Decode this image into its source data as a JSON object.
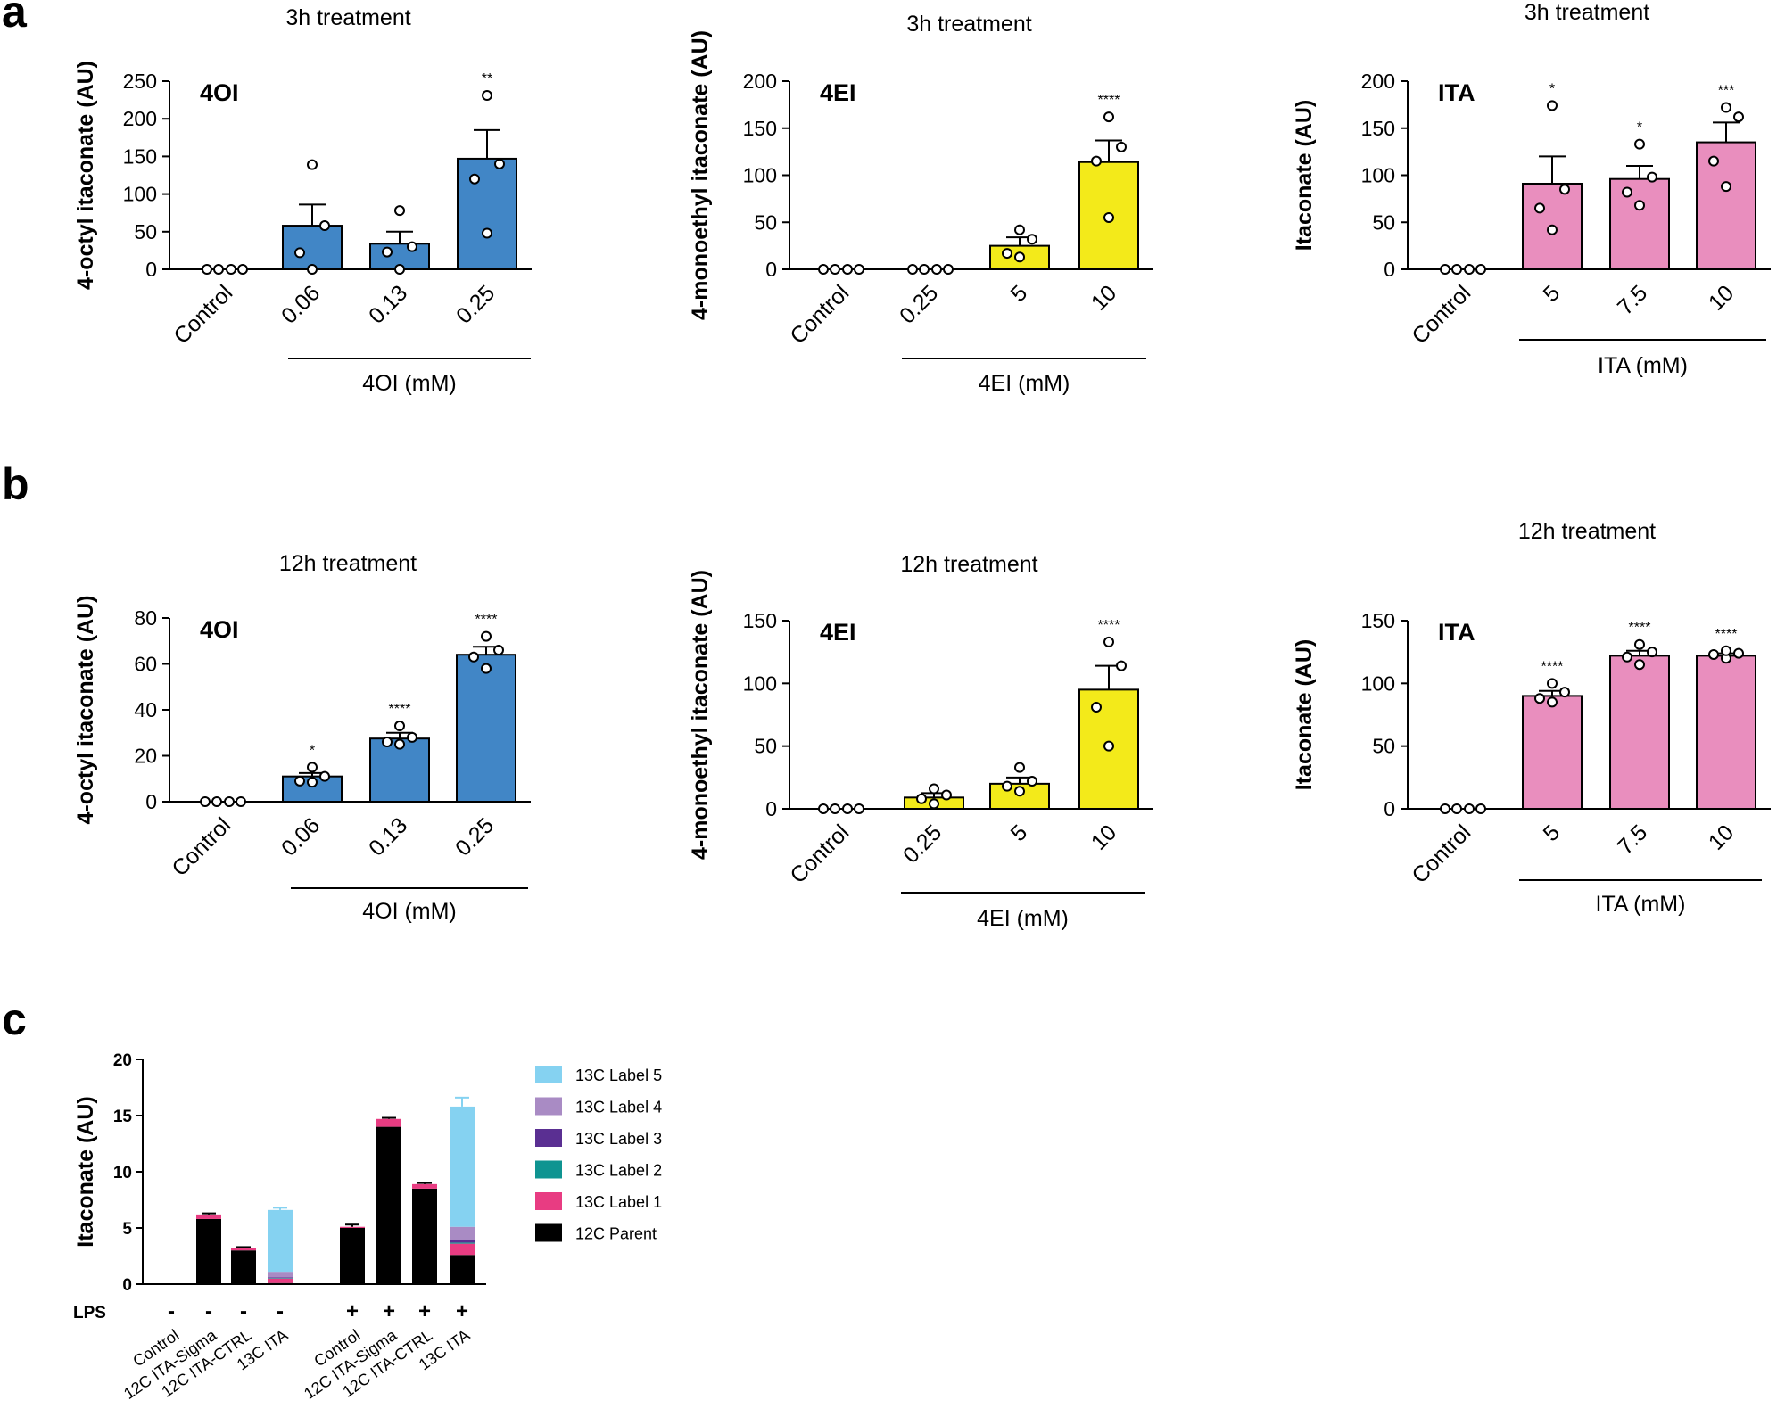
{
  "colors": {
    "blue": "#4186c6",
    "yellow": "#f3ea1a",
    "pink": "#e98ebe",
    "l5": "#85d2f1",
    "l4": "#a98bc4",
    "l3": "#5a2f92",
    "l2": "#0f9491",
    "l1": "#e83c82",
    "parent": "#000000"
  },
  "panel_letters": {
    "a": "a",
    "b": "b",
    "c": "c"
  },
  "chart_data": [
    {
      "id": "a1",
      "type": "bar",
      "title": "3h treatment",
      "inset_label": "4OI",
      "ylabel": "4-octyl itaconate (AU)",
      "ylim": [
        0,
        250
      ],
      "yticks": [
        0,
        50,
        100,
        150,
        200,
        250
      ],
      "categories": [
        "Control",
        "0.06",
        "0.13",
        "0.25"
      ],
      "group_label": "4OI (mM)",
      "values": [
        0,
        58,
        34,
        147
      ],
      "errors": [
        0,
        28,
        16,
        38
      ],
      "points": [
        [
          0,
          0,
          0,
          0
        ],
        [
          0,
          22,
          58,
          139
        ],
        [
          0,
          23,
          30,
          78
        ],
        [
          48,
          120,
          140,
          231
        ]
      ],
      "significance": [
        "",
        "",
        "",
        "**"
      ],
      "color": "blue"
    },
    {
      "id": "a2",
      "type": "bar",
      "title": "3h treatment",
      "inset_label": "4EI",
      "ylabel": "4-monoethyl itaconate (AU)",
      "ylim": [
        0,
        200
      ],
      "yticks": [
        0,
        50,
        100,
        150,
        200
      ],
      "categories": [
        "Control",
        "0.25",
        "5",
        "10"
      ],
      "group_label": "4EI (mM)",
      "values": [
        0,
        0,
        25,
        114
      ],
      "errors": [
        0,
        0,
        9,
        23
      ],
      "points": [
        [
          0,
          0,
          0,
          0
        ],
        [
          0,
          0,
          0,
          0
        ],
        [
          13,
          17,
          32,
          42
        ],
        [
          55,
          115,
          130,
          162
        ]
      ],
      "significance": [
        "",
        "",
        "",
        "****"
      ],
      "color": "yellow"
    },
    {
      "id": "a3",
      "type": "bar",
      "title": "3h treatment",
      "inset_label": "ITA",
      "ylabel": "Itaconate (AU)",
      "ylim": [
        0,
        200
      ],
      "yticks": [
        0,
        50,
        100,
        150,
        200
      ],
      "categories": [
        "Control",
        "5",
        "7.5",
        "10"
      ],
      "group_label": "ITA (mM)",
      "values": [
        0,
        91,
        96,
        135
      ],
      "errors": [
        0,
        29,
        14,
        21
      ],
      "points": [
        [
          0,
          0,
          0,
          0
        ],
        [
          42,
          65,
          85,
          174
        ],
        [
          68,
          82,
          98,
          133
        ],
        [
          88,
          115,
          162,
          172
        ]
      ],
      "significance": [
        "",
        "*",
        "*",
        "***"
      ],
      "color": "pink"
    },
    {
      "id": "b1",
      "type": "bar",
      "title": "12h treatment",
      "inset_label": "4OI",
      "ylabel": "4-octyl itaconate (AU)",
      "ylim": [
        0,
        80
      ],
      "yticks": [
        0,
        20,
        40,
        60,
        80
      ],
      "categories": [
        "Control",
        "0.06",
        "0.13",
        "0.25"
      ],
      "group_label": "4OI (mM)",
      "values": [
        0,
        11,
        27.5,
        64
      ],
      "errors": [
        0,
        1.5,
        2.5,
        3.5
      ],
      "points": [
        [
          0,
          0,
          0,
          0
        ],
        [
          8.5,
          9,
          11,
          15
        ],
        [
          25,
          26,
          28,
          33
        ],
        [
          58,
          63,
          66,
          72
        ]
      ],
      "significance": [
        "",
        "*",
        "****",
        "****"
      ],
      "color": "blue"
    },
    {
      "id": "b2",
      "type": "bar",
      "title": "12h treatment",
      "inset_label": "4EI",
      "ylabel": "4-monoethyl itaconate (AU)",
      "ylim": [
        0,
        150
      ],
      "yticks": [
        0,
        50,
        100,
        150
      ],
      "categories": [
        "Control",
        "0.25",
        "5",
        "10"
      ],
      "group_label": "4EI (mM)",
      "values": [
        0,
        9,
        20,
        95
      ],
      "errors": [
        0,
        3.5,
        5,
        19
      ],
      "points": [
        [
          0,
          0,
          0,
          0
        ],
        [
          4,
          8,
          11,
          16
        ],
        [
          14,
          18,
          22,
          33
        ],
        [
          50,
          81,
          114,
          133
        ]
      ],
      "significance": [
        "",
        "",
        "",
        "****"
      ],
      "color": "yellow"
    },
    {
      "id": "b3",
      "type": "bar",
      "title": "12h treatment",
      "inset_label": "ITA",
      "ylabel": "Itaconate (AU)",
      "ylim": [
        0,
        150
      ],
      "yticks": [
        0,
        50,
        100,
        150
      ],
      "categories": [
        "Control",
        "5",
        "7.5",
        "10"
      ],
      "group_label": "ITA (mM)",
      "values": [
        0,
        90,
        122,
        122
      ],
      "errors": [
        0,
        4,
        4,
        2
      ],
      "points": [
        [
          0,
          0,
          0,
          0
        ],
        [
          85,
          88,
          93,
          100
        ],
        [
          115,
          121,
          125,
          131
        ],
        [
          120,
          123,
          124,
          126
        ]
      ],
      "significance": [
        "",
        "****",
        "****",
        "****"
      ],
      "color": "pink"
    },
    {
      "id": "c",
      "type": "stacked-bar",
      "ylabel": "Itaconate (AU)",
      "ylim": [
        0,
        20
      ],
      "yticks": [
        0,
        5,
        10,
        15,
        20
      ],
      "row_label": "LPS",
      "categories": [
        "Control",
        "12C ITA-Sigma",
        "12C ITA-CTRL",
        "13C ITA",
        "Control",
        "12C ITA-Sigma",
        "12C ITA-CTRL",
        "13C ITA"
      ],
      "lps": [
        "-",
        "-",
        "-",
        "-",
        "+",
        "+",
        "+",
        "+"
      ],
      "series": [
        {
          "name": "12C Parent",
          "color": "parent",
          "values": [
            0.05,
            5.8,
            3.0,
            0.1,
            5.0,
            14.0,
            8.5,
            2.6
          ]
        },
        {
          "name": "13C Label 1",
          "color": "l1",
          "values": [
            0,
            0.4,
            0.2,
            0.4,
            0.1,
            0.7,
            0.4,
            1.0
          ]
        },
        {
          "name": "13C Label 2",
          "color": "l2",
          "values": [
            0,
            0,
            0,
            0.05,
            0,
            0,
            0,
            0.1
          ]
        },
        {
          "name": "13C Label 3",
          "color": "l3",
          "values": [
            0,
            0,
            0,
            0.05,
            0,
            0,
            0,
            0.2
          ]
        },
        {
          "name": "13C Label 4",
          "color": "l4",
          "values": [
            0,
            0,
            0,
            0.5,
            0,
            0,
            0,
            1.2
          ]
        },
        {
          "name": "13C Label 5",
          "color": "l5",
          "values": [
            0,
            0,
            0,
            5.5,
            0,
            0,
            0,
            10.7
          ]
        }
      ],
      "errors": [
        0,
        0.1,
        0.1,
        0.2,
        0.2,
        0.1,
        0.1,
        0.8
      ],
      "legend": [
        "13C Label 5",
        "13C Label 4",
        "13C Label 3",
        "13C Label 2",
        "13C Label 1",
        "12C Parent"
      ]
    }
  ]
}
